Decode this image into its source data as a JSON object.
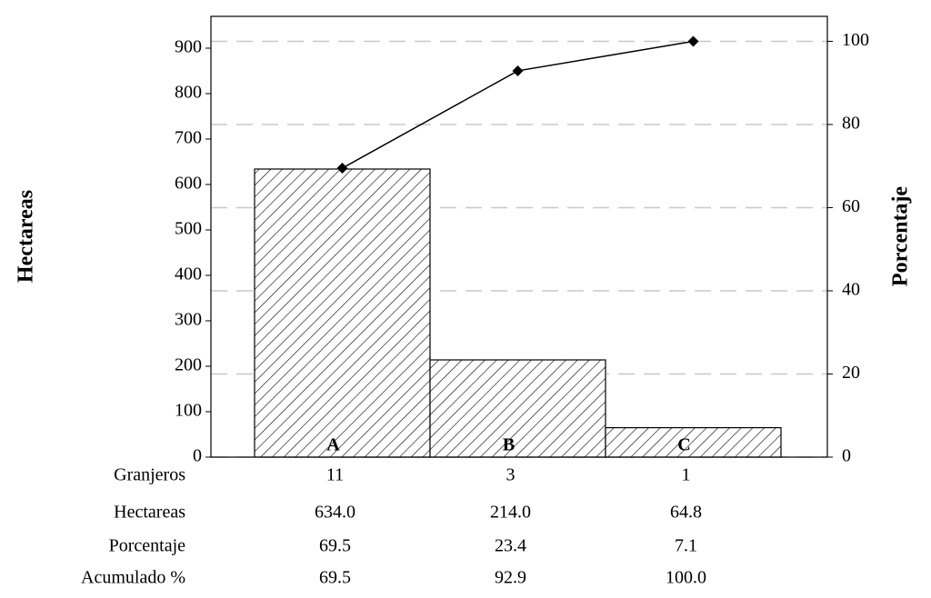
{
  "chart_data": {
    "type": "pareto",
    "ylabel": "Hectareas",
    "y2label": "Porcentaje",
    "xlabel": "Granjeros",
    "categories": [
      "11",
      "3",
      "1"
    ],
    "bar_labels": [
      "A",
      "B",
      "C"
    ],
    "ylim": [
      0,
      970
    ],
    "yticks": [
      0,
      100,
      200,
      300,
      400,
      500,
      600,
      700,
      800,
      900
    ],
    "y2lim": [
      0,
      106
    ],
    "y2ticks": [
      0,
      20,
      40,
      60,
      80,
      100
    ],
    "grid": true,
    "series": [
      {
        "name": "Hectareas",
        "type": "bar",
        "color": "#000000",
        "values": [
          634,
          214,
          64.8
        ],
        "value_labels": [
          "634.0",
          "214.0",
          "64.8"
        ]
      },
      {
        "name": "Acumulado %",
        "type": "line",
        "axis": "y2",
        "color": "#000000",
        "values": [
          69.5,
          92.9,
          100
        ],
        "value_labels": [
          "69.5",
          "92.9",
          "100.0"
        ]
      }
    ],
    "percentages": {
      "name": "Porcentaje",
      "values": [
        69.5,
        23.4,
        7.1
      ]
    }
  }
}
